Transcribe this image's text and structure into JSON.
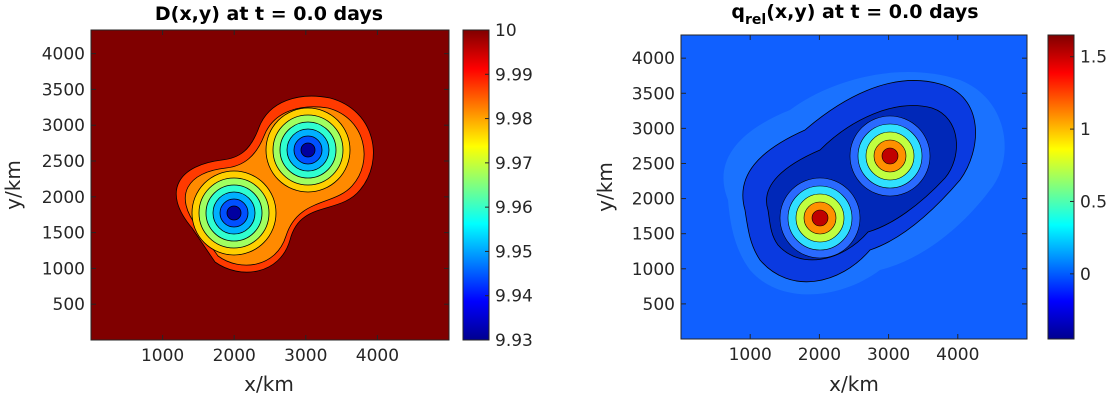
{
  "chart_data": [
    {
      "type": "heatmap",
      "title": "D(x,y) at t = 0.0 days",
      "xlabel": "x/km",
      "ylabel": "y/km",
      "xlim": [
        0,
        5000
      ],
      "ylim": [
        0,
        4330
      ],
      "xticks": [
        1000,
        2000,
        3000,
        4000
      ],
      "xtick_labels": [
        "1000",
        "2000",
        "3000",
        "4000"
      ],
      "yticks": [
        500,
        1000,
        1500,
        2000,
        2500,
        3000,
        3500,
        4000
      ],
      "ytick_labels": [
        "500",
        "1000",
        "1500",
        "2000",
        "2500",
        "3000",
        "3500",
        "4000"
      ],
      "colorbar": {
        "colormap": "jet",
        "clim": [
          9.93,
          10
        ],
        "ticks": [
          9.93,
          9.94,
          9.95,
          9.96,
          9.97,
          9.98,
          9.99,
          10
        ],
        "tick_labels": [
          "9.93",
          "9.94",
          "9.95",
          "9.96",
          "9.97",
          "9.98",
          "9.99",
          "10"
        ]
      },
      "field": {
        "background": 10,
        "features": [
          {
            "x": 2000,
            "y": 1730,
            "amplitude": -0.07
          },
          {
            "x": 3000,
            "y": 2600,
            "amplitude": -0.07
          }
        ]
      },
      "contours": true,
      "grid": false
    },
    {
      "type": "heatmap",
      "title_main": "q",
      "title_sub": "rel",
      "title_rest": "(x,y) at t = 0.0 days",
      "xlabel": "x/km",
      "ylabel": "y/km",
      "xlim": [
        0,
        5000
      ],
      "ylim": [
        0,
        4330
      ],
      "xticks": [
        1000,
        2000,
        3000,
        4000
      ],
      "xtick_labels": [
        "1000",
        "2000",
        "3000",
        "4000"
      ],
      "yticks": [
        500,
        1000,
        1500,
        2000,
        2500,
        3000,
        3500,
        4000
      ],
      "ytick_labels": [
        "500",
        "1000",
        "1500",
        "2000",
        "2500",
        "3000",
        "3500",
        "4000"
      ],
      "colorbar": {
        "colormap": "jet",
        "clim": [
          -0.45,
          1.65
        ],
        "ticks": [
          0,
          0.5,
          1,
          1.5
        ],
        "tick_labels": [
          "0",
          "0.5",
          "1",
          "1.5"
        ]
      },
      "field": {
        "background": 0,
        "features": [
          {
            "x": 2000,
            "y": 1730,
            "amplitude": 1.6
          },
          {
            "x": 3000,
            "y": 2600,
            "amplitude": 1.6
          }
        ]
      },
      "contours": true,
      "grid": false
    }
  ]
}
